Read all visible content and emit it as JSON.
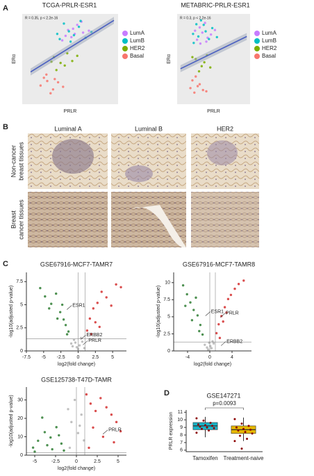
{
  "panel_labels": [
    "A",
    "B",
    "C",
    "D"
  ],
  "histology": {
    "columns": [
      "Luminal A",
      "Luminal B",
      "HER2"
    ],
    "rows": [
      [
        "Non-cancer",
        "breast tissues"
      ],
      [
        "Breast",
        "cancer tissues"
      ]
    ]
  },
  "chart_data": [
    {
      "type": "scatter",
      "title": "TCGA-PRLR-ESR1",
      "x_label": "PRLR",
      "y_label": "ERα",
      "annotation": "R = 0.35, p < 2.2e-16",
      "xlim": [
        -1,
        10.5
      ],
      "ylim": [
        -0.5,
        13.5
      ],
      "series": [
        {
          "name": "LumA",
          "color": "#c77cff",
          "x": [
            4.2,
            5.1,
            6.3,
            3.8,
            5.6,
            7.0,
            4.9,
            6.1,
            5.3,
            4.5
          ],
          "values": [
            10.1,
            11.2,
            10.6,
            9.4,
            11.8,
            10.9,
            9.9,
            12.3,
            10.4,
            11.0
          ]
        },
        {
          "name": "LumB",
          "color": "#00bfc4",
          "x": [
            3.5,
            4.6,
            5.8,
            6.6,
            4.0,
            5.2,
            7.3,
            3.2,
            6.0,
            4.8
          ],
          "values": [
            9.6,
            10.8,
            11.5,
            9.8,
            12.0,
            10.2,
            10.7,
            10.4,
            12.4,
            9.2
          ]
        },
        {
          "name": "HER2",
          "color": "#7cae00",
          "x": [
            2.8,
            3.6,
            4.4,
            5.0,
            3.1,
            4.1,
            5.6,
            2.5
          ],
          "values": [
            6.8,
            5.9,
            7.4,
            6.2,
            4.8,
            5.5,
            7.0,
            6.1
          ]
        },
        {
          "name": "Basal",
          "color": "#f8766d",
          "x": [
            1.2,
            2.0,
            2.7,
            3.3,
            1.6,
            2.4,
            3.9,
            1.9,
            2.9
          ],
          "values": [
            2.4,
            3.1,
            1.8,
            2.9,
            3.6,
            1.2,
            2.2,
            4.1,
            3.4
          ]
        }
      ],
      "fit_line": {
        "color": "#4a5fc1",
        "x": [
          0,
          10
        ],
        "values": [
          4.5,
          12.5
        ]
      }
    },
    {
      "type": "scatter",
      "title": "METABRIC-PRLR-ESR1",
      "x_label": "PRLR",
      "y_label": "ERα",
      "annotation": "R = 0.3, p < 2.2e-16",
      "xlim": [
        -0.5,
        10.5
      ],
      "ylim": [
        -0.5,
        13.5
      ],
      "series": [
        {
          "name": "LumA",
          "color": "#c77cff",
          "x": [
            2.5,
            3.3,
            4.1,
            2.9,
            3.7,
            4.6,
            2.2,
            3.0,
            5.2,
            3.9
          ],
          "values": [
            9.5,
            10.6,
            9.8,
            11.4,
            12.1,
            10.3,
            10.9,
            8.9,
            11.0,
            9.2
          ]
        },
        {
          "name": "LumB",
          "color": "#00bfc4",
          "x": [
            2.7,
            3.5,
            4.3,
            1.9,
            3.1,
            4.8,
            2.4,
            3.8,
            5.5,
            2.0
          ],
          "values": [
            10.0,
            11.8,
            9.6,
            10.4,
            12.5,
            11.3,
            11.9,
            10.8,
            9.9,
            9.0
          ]
        },
        {
          "name": "HER2",
          "color": "#7cae00",
          "x": [
            2.3,
            3.2,
            4.0,
            2.8,
            3.6,
            4.5,
            1.8
          ],
          "values": [
            6.5,
            5.4,
            7.1,
            4.6,
            6.0,
            5.2,
            6.8
          ]
        },
        {
          "name": "Basal",
          "color": "#f8766d",
          "x": [
            1.5,
            2.1,
            2.9,
            3.4,
            1.8,
            2.6,
            3.9,
            2.3
          ],
          "values": [
            2.0,
            1.3,
            2.6,
            1.7,
            3.2,
            2.3,
            1.5,
            3.8
          ]
        }
      ],
      "fit_line": {
        "color": "#4a5fc1",
        "x": [
          0,
          10
        ],
        "values": [
          5,
          10
        ]
      }
    },
    {
      "type": "scatter",
      "title": "GSE67916-MCF7-TAMR7",
      "x_label": "log2(fold change)",
      "y_label": "-log10(adjusted p-value)",
      "xlim": [
        -7.5,
        7
      ],
      "ylim": [
        0,
        8.5
      ],
      "xticks": [
        -7.5,
        -5,
        -2.5,
        0,
        2.5,
        5
      ],
      "yticks": [
        0,
        2.5,
        5,
        7.5
      ],
      "hline": 1.3,
      "vlines": [
        0,
        1
      ],
      "labels": [
        "ESR1",
        "ERBB2",
        "PRLR"
      ],
      "series": [
        {
          "color": "#2e7d32",
          "x": [
            -5.5,
            -4.8,
            -3.9,
            -3.2,
            -2.6,
            -2.1,
            -1.8,
            -1.4,
            -3.0,
            -2.3,
            -1.6,
            -4.2
          ],
          "values": [
            6.8,
            5.9,
            5.1,
            6.2,
            4.2,
            3.4,
            2.8,
            2.1,
            3.5,
            5.0,
            1.8,
            4.6
          ]
        },
        {
          "color": "#b5b5b5",
          "x": [
            -1.0,
            -0.6,
            -0.2,
            0.2,
            0.6,
            0.9,
            -0.8,
            0.4,
            -0.4,
            0.0
          ],
          "values": [
            0.8,
            1.2,
            0.4,
            0.6,
            1.0,
            0.3,
            0.5,
            1.4,
            0.9,
            0.2
          ]
        },
        {
          "color": "#d32f2f",
          "x": [
            1.3,
            1.7,
            2.2,
            2.8,
            3.4,
            4.1,
            4.8,
            5.5,
            2.5,
            3.1,
            1.9,
            6.2
          ],
          "values": [
            2.2,
            3.5,
            4.6,
            5.2,
            6.4,
            5.8,
            4.9,
            7.2,
            3.1,
            2.6,
            1.8,
            6.9
          ]
        }
      ]
    },
    {
      "type": "scatter",
      "title": "GSE67916-MCF7-TAMR8",
      "x_label": "log2(fold change)",
      "y_label": "-log10(adjusted p-value)",
      "xlim": [
        -6.5,
        7.5
      ],
      "ylim": [
        0,
        11.5
      ],
      "xticks": [
        -4,
        0,
        4
      ],
      "yticks": [
        0,
        2.5,
        5,
        7.5,
        10
      ],
      "hline": 1.3,
      "vlines": [
        0,
        1
      ],
      "labels": [
        "ESR1",
        "PRLR",
        "ERBB2"
      ],
      "series": [
        {
          "color": "#2e7d32",
          "x": [
            -4.8,
            -4.1,
            -3.5,
            -2.9,
            -2.2,
            -1.7,
            -1.3,
            -3.2,
            -2.5,
            -4.4,
            -1.9
          ],
          "values": [
            9.6,
            8.3,
            7.1,
            6.0,
            5.2,
            3.8,
            2.4,
            4.5,
            7.8,
            6.6,
            2.9
          ]
        },
        {
          "color": "#b5b5b5",
          "x": [
            -0.9,
            -0.5,
            -0.1,
            0.3,
            0.7,
            -0.3,
            0.1,
            0.5
          ],
          "values": [
            0.9,
            0.5,
            1.2,
            0.4,
            1.1,
            0.2,
            0.7,
            1.4
          ]
        },
        {
          "color": "#d32f2f",
          "x": [
            1.2,
            1.6,
            2.1,
            2.7,
            3.3,
            3.8,
            4.5,
            5.2,
            6.1,
            2.4,
            1.8,
            3.0
          ],
          "values": [
            2.6,
            3.9,
            5.1,
            6.4,
            7.6,
            8.2,
            9.1,
            9.8,
            10.3,
            4.3,
            1.9,
            5.6
          ]
        }
      ]
    },
    {
      "type": "scatter",
      "title": "GSE125738-T47D-TAMR",
      "x_label": "log2(fold change)",
      "y_label": "-log10(adjusted p-value)",
      "xlim": [
        -6,
        6
      ],
      "ylim": [
        0,
        37
      ],
      "xticks": [
        -5,
        -2.5,
        0,
        2.5,
        5
      ],
      "yticks": [
        0,
        10,
        20,
        30
      ],
      "hline": 1.3,
      "vlines": [
        0,
        1
      ],
      "labels": [
        "PRLR"
      ],
      "series": [
        {
          "color": "#2e7d32",
          "x": [
            -5.2,
            -4.6,
            -3.8,
            -3.1,
            -2.4,
            -1.8,
            -4.1,
            -2.9,
            -1.5,
            -3.5,
            -5.0,
            -2.1
          ],
          "values": [
            4.1,
            7.8,
            12.5,
            9.6,
            15.2,
            6.3,
            20.4,
            3.2,
            2.5,
            5.4,
            1.9,
            10.8
          ]
        },
        {
          "color": "#b5b5b5",
          "x": [
            -1.0,
            -0.6,
            -0.2,
            0.2,
            0.6,
            0.9,
            -0.8,
            0.4
          ],
          "values": [
            25,
            18,
            30,
            12,
            22,
            8,
            4,
            16
          ]
        },
        {
          "color": "#d32f2f",
          "x": [
            1.2,
            1.7,
            2.3,
            2.9,
            3.6,
            4.2,
            4.8,
            5.3,
            2.0,
            3.2,
            4.5,
            1.5
          ],
          "values": [
            33,
            28,
            24,
            31,
            26,
            22,
            18,
            13,
            15,
            10,
            7,
            4
          ]
        }
      ]
    },
    {
      "type": "box",
      "title": "GSE147271",
      "annotation": "p=0.0093",
      "y_label": "PRLR expression",
      "categories": [
        "Tamoxifen",
        "Treatment-naive"
      ],
      "ylim": [
        5.8,
        11.3
      ],
      "yticks": [
        6,
        7,
        8,
        9,
        10,
        11
      ],
      "boxes": [
        {
          "min": 7.7,
          "q1": 8.7,
          "median": 9.2,
          "q3": 9.65,
          "max": 10.4,
          "color": "#1ab3c6"
        },
        {
          "min": 7.2,
          "q1": 8.2,
          "median": 8.7,
          "q3": 9.2,
          "max": 10.3,
          "color": "#e6b800"
        }
      ],
      "point_color": "#8b0000",
      "points": [
        [
          10.2,
          9.9,
          9.6,
          9.4,
          9.3,
          9.2,
          9.1,
          9.0,
          8.9,
          8.8,
          8.6,
          8.3
        ],
        [
          10.1,
          9.5,
          9.2,
          9.0,
          8.8,
          8.7,
          8.6,
          8.4,
          8.2,
          7.9,
          7.5,
          7.2,
          6.2
        ]
      ]
    }
  ]
}
